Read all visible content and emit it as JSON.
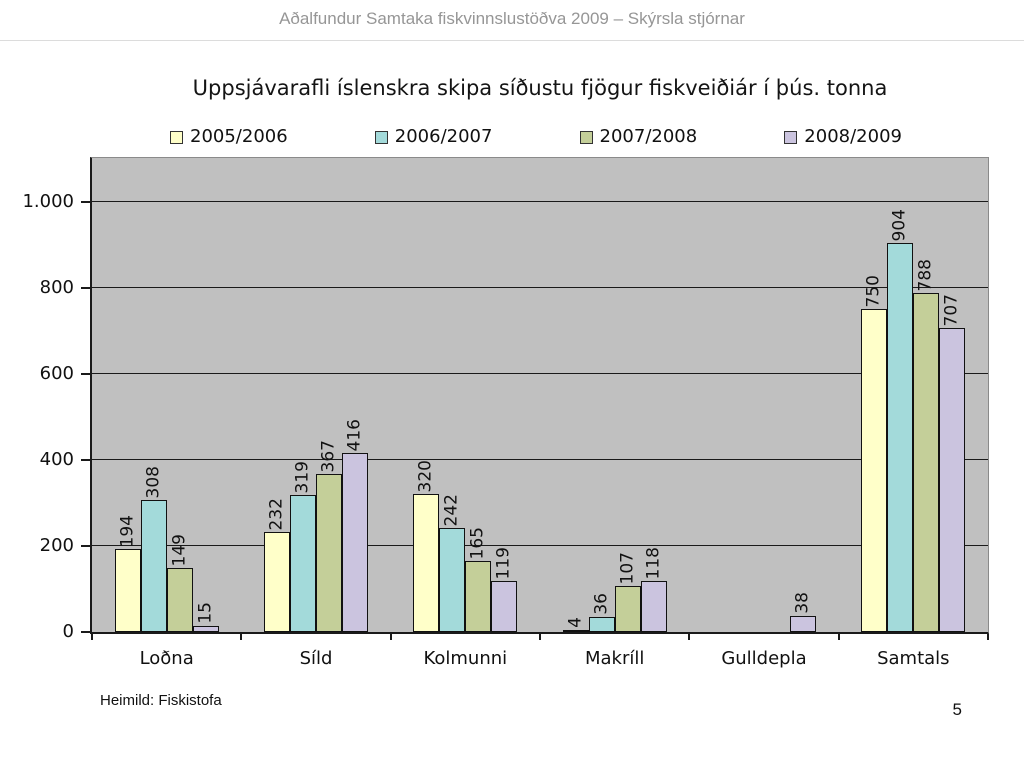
{
  "header": {
    "title": "Aðalfundur Samtaka fiskvinnslustöðva 2009 – Skýrsla stjórnar"
  },
  "chart": {
    "title": "Uppsjávarafli íslenskra skipa síðustu fjögur fiskveiðiár í þús. tonna"
  },
  "chart_data": {
    "type": "bar",
    "title": "Uppsjávarafli íslenskra skipa síðustu fjögur fiskveiðiár í þús. tonna",
    "unit": "þús. tonna",
    "categories": [
      "Loðna",
      "Síld",
      "Kolmunni",
      "Makríll",
      "Gulldepla",
      "Samtals"
    ],
    "series": [
      {
        "name": "2005/2006",
        "color": "#FFFFC9",
        "values": [
          194,
          232,
          320,
          4,
          null,
          750
        ]
      },
      {
        "name": "2006/2007",
        "color": "#A3DADA",
        "values": [
          308,
          319,
          242,
          36,
          null,
          904
        ]
      },
      {
        "name": "2007/2008",
        "color": "#C4CF99",
        "values": [
          149,
          367,
          165,
          107,
          null,
          788
        ]
      },
      {
        "name": "2008/2009",
        "color": "#CBC4DF",
        "values": [
          15,
          416,
          119,
          118,
          38,
          707
        ]
      }
    ],
    "ylim": [
      0,
      1102
    ],
    "yticks": [
      0,
      200,
      400,
      600,
      800,
      1000
    ],
    "ytick_labels": [
      "0",
      "200",
      "400",
      "600",
      "800",
      "1.000"
    ],
    "grid": true,
    "legend_position": "top",
    "plot_bg": "#C0C0C0",
    "bar_border_color": "#111111",
    "data_labels_rotated": true
  },
  "footer": {
    "source": "Heimild: Fiskistofa",
    "page_number": "5"
  }
}
